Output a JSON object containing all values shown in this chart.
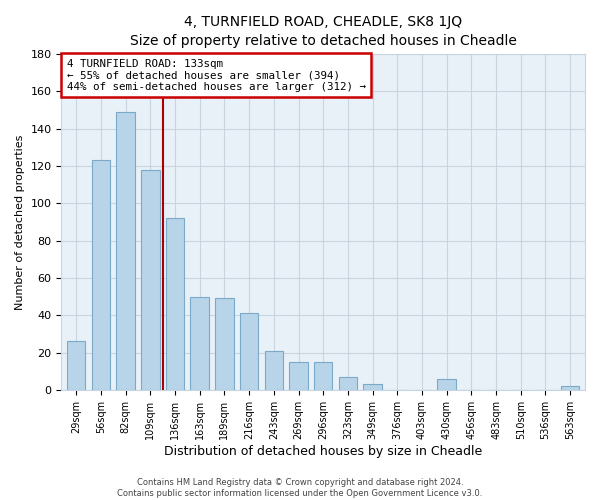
{
  "title": "4, TURNFIELD ROAD, CHEADLE, SK8 1JQ",
  "subtitle": "Size of property relative to detached houses in Cheadle",
  "xlabel": "Distribution of detached houses by size in Cheadle",
  "ylabel": "Number of detached properties",
  "bar_labels": [
    "29sqm",
    "56sqm",
    "82sqm",
    "109sqm",
    "136sqm",
    "163sqm",
    "189sqm",
    "216sqm",
    "243sqm",
    "269sqm",
    "296sqm",
    "323sqm",
    "349sqm",
    "376sqm",
    "403sqm",
    "430sqm",
    "456sqm",
    "483sqm",
    "510sqm",
    "536sqm",
    "563sqm"
  ],
  "bar_values": [
    26,
    123,
    149,
    118,
    92,
    50,
    49,
    41,
    21,
    15,
    15,
    7,
    3,
    0,
    0,
    6,
    0,
    0,
    0,
    0,
    2
  ],
  "bar_color": "#b8d4e8",
  "bar_edge_color": "#7aaac8",
  "vline_index": 4,
  "vline_color": "#aa0000",
  "annotation_text": "4 TURNFIELD ROAD: 133sqm\n← 55% of detached houses are smaller (394)\n44% of semi-detached houses are larger (312) →",
  "annotation_box_color": "#ffffff",
  "annotation_box_edge": "#cc0000",
  "ylim": [
    0,
    180
  ],
  "yticks": [
    0,
    20,
    40,
    60,
    80,
    100,
    120,
    140,
    160,
    180
  ],
  "footer_line1": "Contains HM Land Registry data © Crown copyright and database right 2024.",
  "footer_line2": "Contains public sector information licensed under the Open Government Licence v3.0.",
  "background_color": "#ffffff",
  "plot_bg_color": "#e8f0f8",
  "grid_color": "#c8d4e0"
}
